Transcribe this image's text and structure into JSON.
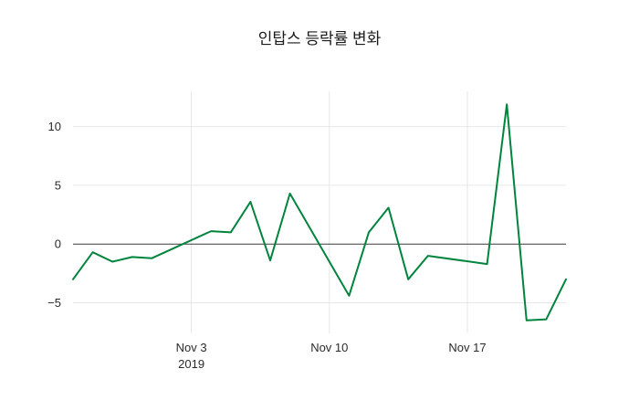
{
  "chart_data": {
    "type": "line",
    "title": "인탑스 등락률 변화",
    "xlabel": "",
    "ylabel": "",
    "background_color": "#ffffff",
    "grid": true,
    "grid_color": "#e6e6e6",
    "zero_line": true,
    "zero_line_color": "#3a3a3a",
    "legend": "none",
    "x_range": [
      "2019-10-28",
      "2019-11-22"
    ],
    "y_range": [
      -7.6,
      13.0
    ],
    "x_ticks": [
      {
        "date": "2019-11-03",
        "label": "Nov 3",
        "sublabel": "2019"
      },
      {
        "date": "2019-11-10",
        "label": "Nov 10",
        "sublabel": ""
      },
      {
        "date": "2019-11-17",
        "label": "Nov 17",
        "sublabel": ""
      }
    ],
    "y_ticks": [
      {
        "value": -5,
        "label": "−5"
      },
      {
        "value": 0,
        "label": "0"
      },
      {
        "value": 5,
        "label": "5"
      },
      {
        "value": 10,
        "label": "10"
      }
    ],
    "series": [
      {
        "name": "인탑스 등락률",
        "color": "#00843d",
        "line_width": 2,
        "x": [
          "2019-10-28",
          "2019-10-29",
          "2019-10-30",
          "2019-10-31",
          "2019-11-01",
          "2019-11-04",
          "2019-11-05",
          "2019-11-06",
          "2019-11-07",
          "2019-11-08",
          "2019-11-11",
          "2019-11-12",
          "2019-11-13",
          "2019-11-14",
          "2019-11-15",
          "2019-11-18",
          "2019-11-19",
          "2019-11-20",
          "2019-11-21",
          "2019-11-22"
        ],
        "values": [
          -3.0,
          -0.7,
          -1.5,
          -1.1,
          -1.2,
          1.1,
          1.0,
          3.6,
          -1.4,
          4.3,
          -4.4,
          1.0,
          3.1,
          -3.0,
          -1.0,
          -1.7,
          11.9,
          -6.5,
          -6.4,
          -3.0
        ]
      }
    ]
  }
}
